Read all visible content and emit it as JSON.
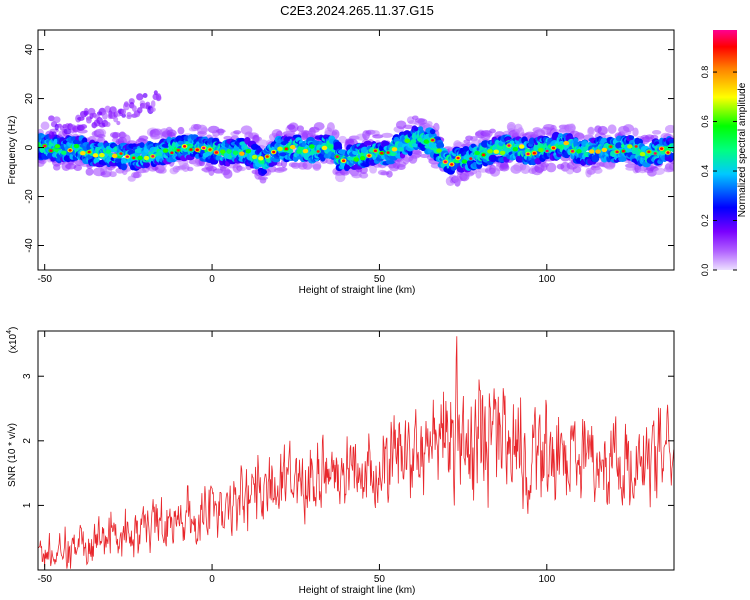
{
  "title": "C2E3.2024.265.11.37.G15",
  "chart_data": [
    {
      "type": "heatmap",
      "xlabel": "Height of straight line (km)",
      "ylabel": "Frequency (Hz)",
      "xlim": [
        -52,
        138
      ],
      "ylim": [
        -50,
        48
      ],
      "xticks": [
        -50,
        0,
        50,
        100
      ],
      "yticks": [
        -40,
        -20,
        0,
        20,
        40
      ],
      "colorbar": {
        "label": "Normalized spectral amplitude",
        "range": [
          0.0,
          0.97
        ],
        "ticks": [
          0.0,
          0.2,
          0.4,
          0.6,
          0.8
        ],
        "colors": [
          "#e6d6ff",
          "#8a00ff",
          "#0000ff",
          "#00ffff",
          "#00ff00",
          "#ffff00",
          "#ff8000",
          "#ff0000",
          "#ff00a0"
        ]
      },
      "ridge": {
        "x": [
          -52,
          -45,
          -40,
          -35,
          -30,
          -25,
          -20,
          -15,
          -10,
          -5,
          0,
          5,
          10,
          15,
          20,
          25,
          30,
          35,
          38,
          42,
          48,
          52,
          58,
          62,
          66,
          70,
          75,
          80,
          85,
          90,
          95,
          100,
          105,
          110,
          115,
          120,
          125,
          130,
          135,
          138
        ],
        "y": [
          1,
          -1,
          0,
          -3,
          -2,
          -4,
          -3,
          -2,
          0,
          0,
          -1,
          -2,
          -1,
          -6,
          -1,
          0,
          -1,
          1,
          -4,
          -4,
          -2,
          -3,
          2,
          4,
          2,
          -6,
          -5,
          -3,
          -1,
          0,
          -2,
          0,
          1,
          -2,
          -1,
          -1,
          0,
          -3,
          -1,
          0
        ]
      },
      "annotation_branch": {
        "x": [
          -48,
          -40,
          -35,
          -28,
          -22,
          -16
        ],
        "y": [
          8,
          10,
          12,
          12,
          18,
          20
        ]
      }
    },
    {
      "type": "line",
      "xlabel": "Height of straight line (km)",
      "ylabel": "SNR (10 * v/v)",
      "multiplier_label": "(x10",
      "multiplier_exp": "4",
      "xlim": [
        -52,
        138
      ],
      "ylim": [
        0,
        3.7
      ],
      "xticks": [
        -50,
        0,
        50,
        100
      ],
      "yticks": [
        1,
        2,
        3
      ],
      "color": "#e8262b",
      "envelope": {
        "x": [
          -52,
          -40,
          -30,
          -20,
          -10,
          0,
          10,
          20,
          30,
          40,
          50,
          60,
          70,
          80,
          90,
          100,
          110,
          120,
          130,
          138
        ],
        "mean": [
          0.2,
          0.25,
          0.5,
          0.6,
          0.7,
          0.85,
          1.0,
          1.2,
          1.35,
          1.4,
          1.45,
          1.6,
          1.8,
          1.75,
          1.7,
          1.6,
          1.5,
          1.5,
          1.55,
          1.6
        ],
        "amplitude": [
          0.15,
          0.3,
          0.45,
          0.45,
          0.45,
          0.5,
          0.55,
          0.6,
          0.55,
          0.5,
          0.6,
          0.8,
          1.0,
          1.05,
          0.95,
          0.9,
          0.75,
          0.7,
          0.65,
          0.6
        ]
      },
      "peak": {
        "x": 73,
        "y": 3.7
      }
    }
  ]
}
